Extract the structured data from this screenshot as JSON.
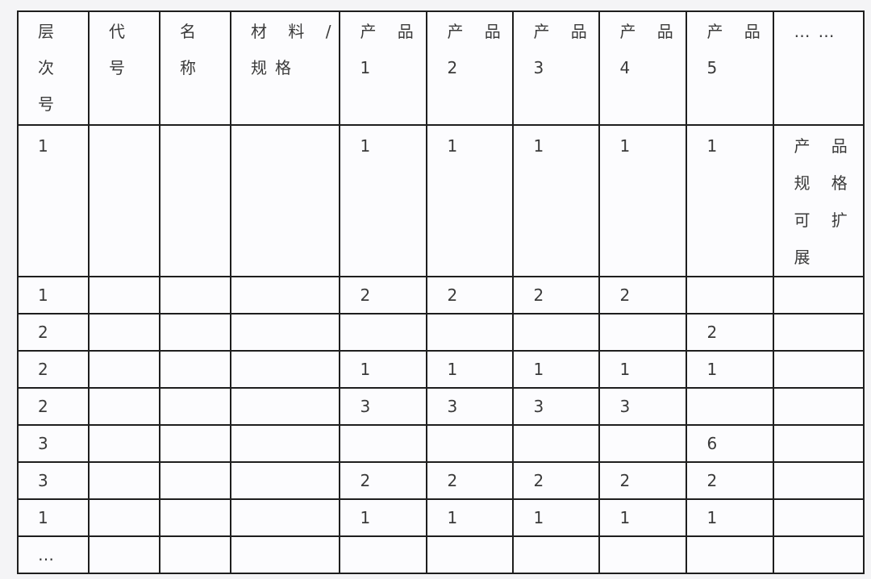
{
  "table": {
    "header": [
      [
        "层",
        "次",
        "号"
      ],
      [
        "代",
        "号"
      ],
      [
        "名",
        "称"
      ],
      [
        "材 料 /",
        "规格"
      ],
      [
        "产 品",
        "1"
      ],
      [
        "产 品",
        "2"
      ],
      [
        "产 品",
        "3"
      ],
      [
        "产 品",
        "4"
      ],
      [
        "产 品",
        "5"
      ],
      [
        "……"
      ]
    ],
    "rows": [
      [
        "1",
        "",
        "",
        "",
        "1",
        "1",
        "1",
        "1",
        "1",
        [
          "产 品",
          "规 格",
          "可 扩",
          "展"
        ]
      ],
      [
        "1",
        "",
        "",
        "",
        "2",
        "2",
        "2",
        "2",
        "",
        ""
      ],
      [
        "2",
        "",
        "",
        "",
        "",
        "",
        "",
        "",
        "2",
        ""
      ],
      [
        "2",
        "",
        "",
        "",
        "1",
        "1",
        "1",
        "1",
        "1",
        ""
      ],
      [
        "2",
        "",
        "",
        "",
        "3",
        "3",
        "3",
        "3",
        "",
        ""
      ],
      [
        "3",
        "",
        "",
        "",
        "",
        "",
        "",
        "",
        "6",
        ""
      ],
      [
        "3",
        "",
        "",
        "",
        "2",
        "2",
        "2",
        "2",
        "2",
        ""
      ],
      [
        "1",
        "",
        "",
        "",
        "1",
        "1",
        "1",
        "1",
        "1",
        ""
      ],
      [
        "…",
        "",
        "",
        "",
        "",
        "",
        "",
        "",
        "",
        ""
      ]
    ]
  }
}
